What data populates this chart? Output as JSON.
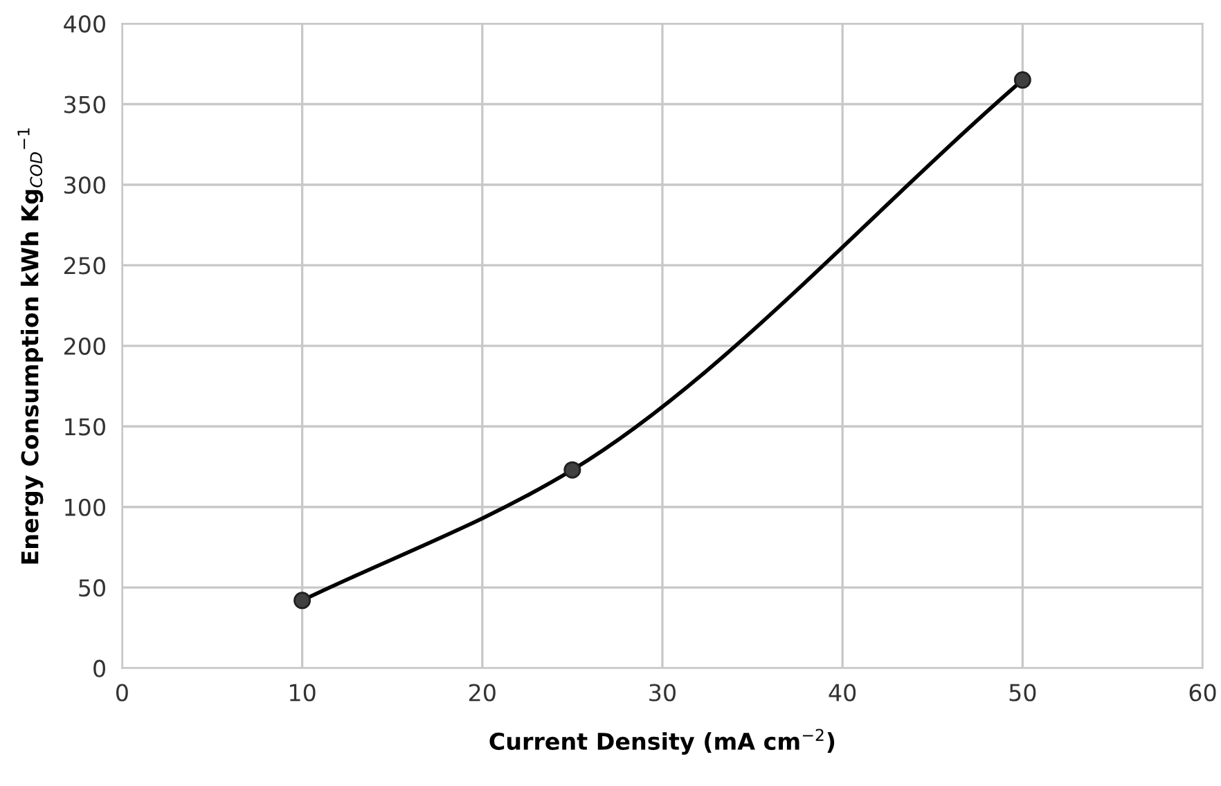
{
  "chart_data": {
    "type": "line",
    "xlabel": "Current Density (mA cm$^{−2}$)",
    "ylabel": "Energy Consumption kWh Kg$_{COD}$$^{−1}$",
    "x": [
      10,
      25,
      50
    ],
    "series": [
      {
        "color": "#000000",
        "values": [
          42,
          123,
          365
        ]
      }
    ],
    "xlim": [
      0,
      60
    ],
    "xticks": [
      0,
      10,
      20,
      30,
      40,
      50,
      60
    ],
    "ylim": [
      0,
      400
    ],
    "yticks": [
      0,
      50,
      100,
      150,
      200,
      250,
      300,
      350,
      400
    ],
    "grid": true,
    "marker": "circle",
    "line_style": "solid"
  }
}
